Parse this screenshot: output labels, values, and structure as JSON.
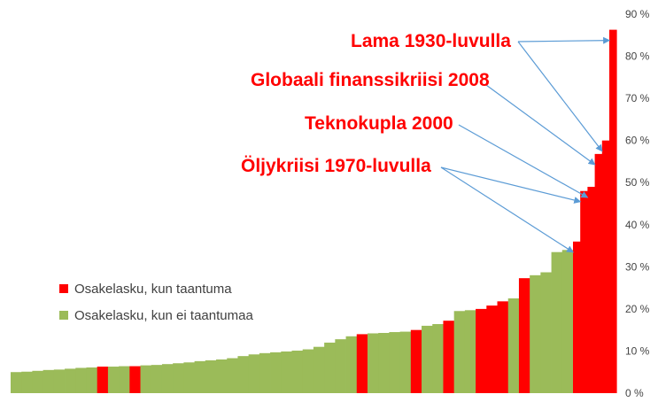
{
  "chart_data": {
    "type": "bar",
    "ylim": [
      0,
      90
    ],
    "y_unit": "%",
    "y_ticks": [
      "0 %",
      "10 %",
      "20 %",
      "30 %",
      "40 %",
      "50 %",
      "60 %",
      "70 %",
      "80 %",
      "90 %"
    ],
    "y_tick_values": [
      0,
      10,
      20,
      30,
      40,
      50,
      60,
      70,
      80,
      90
    ],
    "grid": false,
    "legend_position": "left-middle",
    "series": [
      {
        "name": "Osakelasku, kun taantuma",
        "color": "#ff0000"
      },
      {
        "name": "Osakelasku, kun ei taantumaa",
        "color": "#9bbb59"
      }
    ],
    "bars": [
      {
        "value": 5.0,
        "recession": false
      },
      {
        "value": 5.1,
        "recession": false
      },
      {
        "value": 5.3,
        "recession": false
      },
      {
        "value": 5.5,
        "recession": false
      },
      {
        "value": 5.6,
        "recession": false
      },
      {
        "value": 5.8,
        "recession": false
      },
      {
        "value": 6.0,
        "recession": false
      },
      {
        "value": 6.1,
        "recession": false
      },
      {
        "value": 6.3,
        "recession": true
      },
      {
        "value": 6.3,
        "recession": false
      },
      {
        "value": 6.4,
        "recession": false
      },
      {
        "value": 6.4,
        "recession": true
      },
      {
        "value": 6.6,
        "recession": false
      },
      {
        "value": 6.7,
        "recession": false
      },
      {
        "value": 6.9,
        "recession": false
      },
      {
        "value": 7.1,
        "recession": false
      },
      {
        "value": 7.3,
        "recession": false
      },
      {
        "value": 7.6,
        "recession": false
      },
      {
        "value": 7.8,
        "recession": false
      },
      {
        "value": 8.0,
        "recession": false
      },
      {
        "value": 8.3,
        "recession": false
      },
      {
        "value": 8.8,
        "recession": false
      },
      {
        "value": 9.2,
        "recession": false
      },
      {
        "value": 9.5,
        "recession": false
      },
      {
        "value": 9.7,
        "recession": false
      },
      {
        "value": 9.9,
        "recession": false
      },
      {
        "value": 10.1,
        "recession": false
      },
      {
        "value": 10.4,
        "recession": false
      },
      {
        "value": 11.0,
        "recession": false
      },
      {
        "value": 12.0,
        "recession": false
      },
      {
        "value": 12.8,
        "recession": false
      },
      {
        "value": 13.5,
        "recession": false
      },
      {
        "value": 14.0,
        "recession": true
      },
      {
        "value": 14.2,
        "recession": false
      },
      {
        "value": 14.3,
        "recession": false
      },
      {
        "value": 14.5,
        "recession": false
      },
      {
        "value": 14.6,
        "recession": false
      },
      {
        "value": 15.0,
        "recession": true
      },
      {
        "value": 16.0,
        "recession": false
      },
      {
        "value": 16.4,
        "recession": false
      },
      {
        "value": 17.2,
        "recession": true
      },
      {
        "value": 19.5,
        "recession": false
      },
      {
        "value": 19.7,
        "recession": false
      },
      {
        "value": 20.0,
        "recession": true
      },
      {
        "value": 20.8,
        "recession": true
      },
      {
        "value": 21.8,
        "recession": true
      },
      {
        "value": 22.5,
        "recession": false
      },
      {
        "value": 27.3,
        "recession": true
      },
      {
        "value": 28.0,
        "recession": false
      },
      {
        "value": 28.7,
        "recession": false
      },
      {
        "value": 33.5,
        "recession": false
      },
      {
        "value": 34.0,
        "recession": false
      },
      {
        "value": 36.0,
        "recession": true
      },
      {
        "value": 48.0,
        "recession": true
      },
      {
        "value": 49.0,
        "recession": true
      },
      {
        "value": 56.8,
        "recession": true
      },
      {
        "value": 60.0,
        "recession": true
      },
      {
        "value": 86.3,
        "recession": true
      }
    ],
    "annotations": [
      {
        "text": "Lama 1930-luvulla",
        "target_bars": [
          57,
          56
        ]
      },
      {
        "text": "Globaali finanssikriisi 2008",
        "target_bars": [
          55
        ]
      },
      {
        "text": "Teknokupla 2000",
        "target_bars": [
          54
        ]
      },
      {
        "text": "Öljykriisi 1970-luvulla",
        "target_bars": [
          53,
          52
        ]
      }
    ],
    "annotation_color": "#ff0000",
    "arrow_color": "#5b9bd5"
  }
}
